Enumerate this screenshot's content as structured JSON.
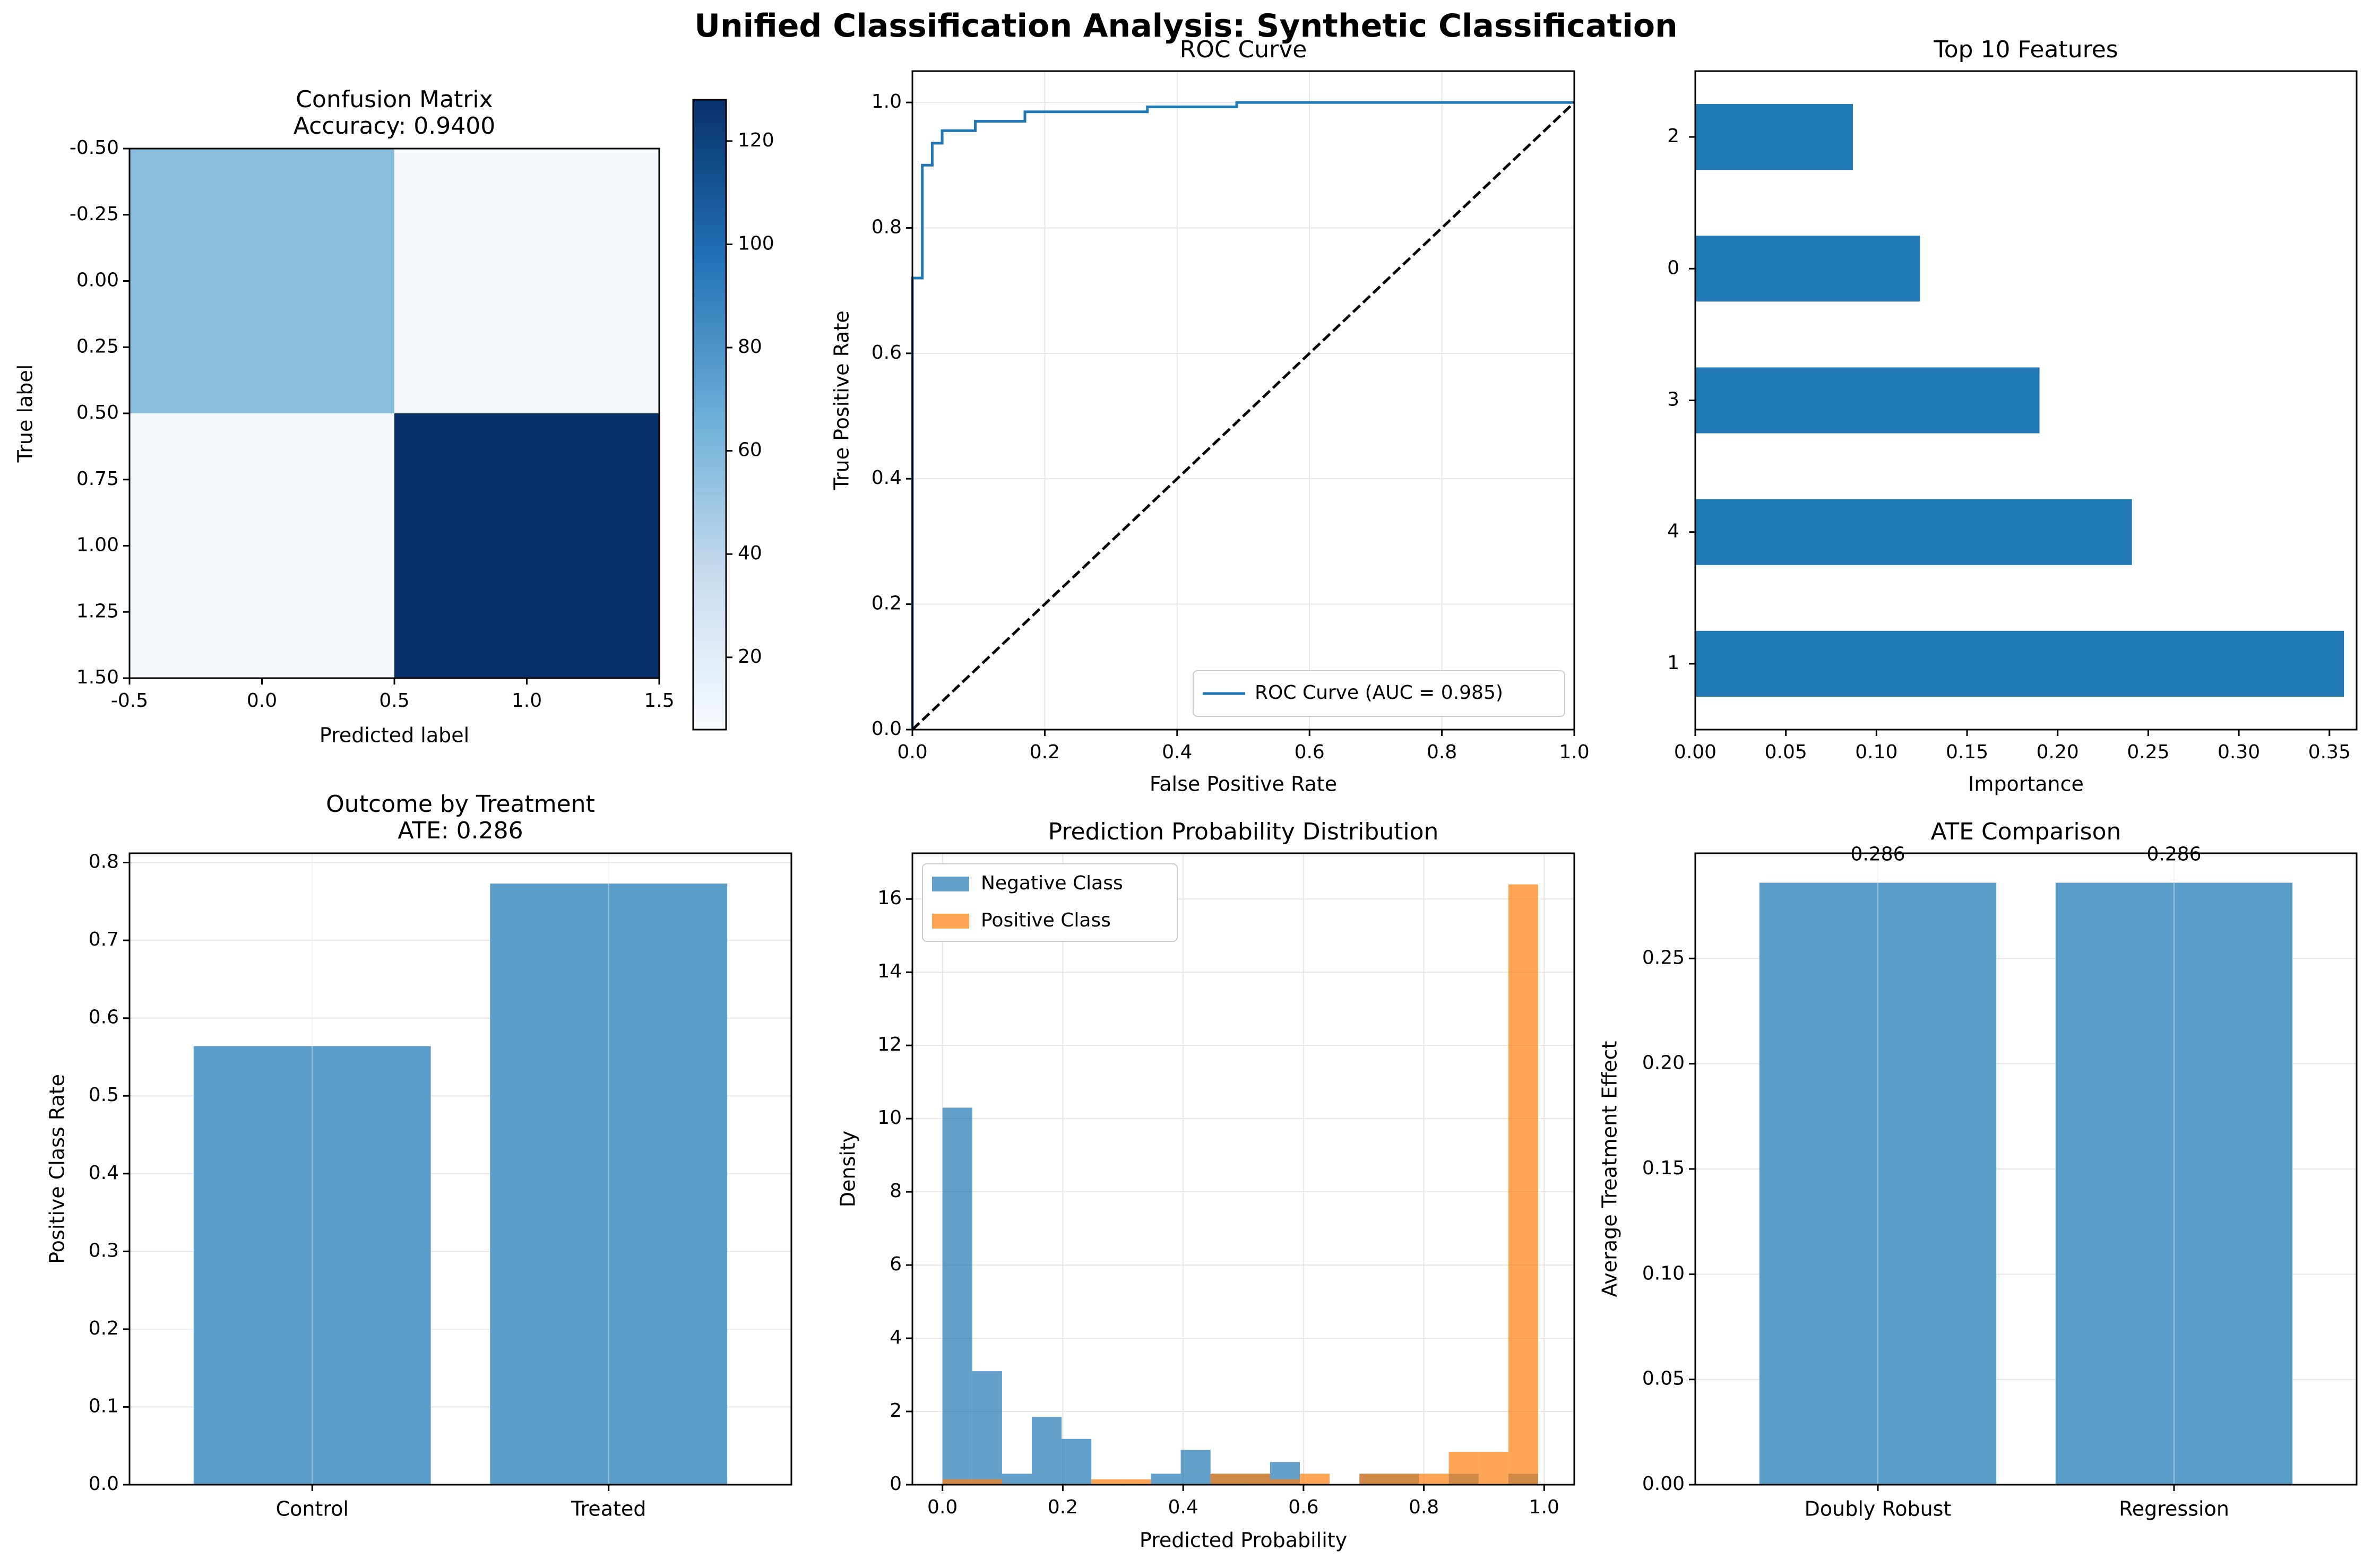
{
  "suptitle": "Unified Classification Analysis: Synthetic Classification",
  "colors": {
    "blue": "#1f77b4",
    "orange": "#ff7f0e",
    "bar_blue": "#5b9dc9",
    "diag": "#000000"
  },
  "chart_data": [
    {
      "id": "confusion",
      "type": "heatmap",
      "title": [
        "Confusion Matrix",
        "Accuracy: 0.9400"
      ],
      "xlabel": "Predicted label",
      "ylabel": "True label",
      "matrix": [
        [
          61,
          6
        ],
        [
          6,
          128
        ]
      ],
      "cell_colors": [
        [
          "#88bedc",
          "#f5f9fe"
        ],
        [
          "#f5f9fe",
          "#08306b"
        ]
      ],
      "xlim": [
        -0.5,
        1.5
      ],
      "ylim": [
        1.5,
        -0.5
      ],
      "xticks": [
        "-0.5",
        "0.0",
        "0.5",
        "1.0",
        "1.5"
      ],
      "yticks": [
        "-0.50",
        "-0.25",
        "0.00",
        "0.25",
        "0.50",
        "0.75",
        "1.00",
        "1.25",
        "1.50"
      ],
      "colorbar": {
        "range": [
          6,
          128
        ],
        "ticks": [
          "20",
          "40",
          "60",
          "80",
          "100",
          "120"
        ],
        "colormap": "Blues"
      }
    },
    {
      "id": "roc",
      "type": "line",
      "title": "ROC Curve",
      "xlabel": "False Positive Rate",
      "ylabel": "True Positive Rate",
      "xlim": [
        0,
        1
      ],
      "ylim": [
        0,
        1.05
      ],
      "xticks": [
        "0.0",
        "0.2",
        "0.4",
        "0.6",
        "0.8",
        "1.0"
      ],
      "yticks": [
        "0.0",
        "0.2",
        "0.4",
        "0.6",
        "0.8",
        "1.0"
      ],
      "grid": true,
      "legend": "lower-right",
      "series": [
        {
          "name": "ROC Curve (AUC = 0.985)",
          "x": [
            0,
            0,
            0.015,
            0.015,
            0.03,
            0.03,
            0.045,
            0.045,
            0.095,
            0.095,
            0.17,
            0.17,
            0.355,
            0.355,
            0.49,
            0.49,
            1.0
          ],
          "y": [
            0,
            0.72,
            0.72,
            0.9,
            0.9,
            0.935,
            0.935,
            0.955,
            0.955,
            0.97,
            0.97,
            0.985,
            0.985,
            0.993,
            0.993,
            1.0,
            1.0
          ]
        },
        {
          "name": "",
          "x": [
            0,
            1
          ],
          "y": [
            0,
            1
          ],
          "dashed": true
        }
      ]
    },
    {
      "id": "features",
      "type": "bar",
      "orientation": "horizontal",
      "title": "Top 10 Features",
      "xlabel": "Importance",
      "categories": [
        "1",
        "4",
        "3",
        "0",
        "2"
      ],
      "values": [
        0.358,
        0.241,
        0.19,
        0.124,
        0.087
      ],
      "xlim": [
        0,
        0.365
      ],
      "xticks": [
        "0.00",
        "0.05",
        "0.10",
        "0.15",
        "0.20",
        "0.25",
        "0.30",
        "0.35"
      ]
    },
    {
      "id": "outcome",
      "type": "bar",
      "title": [
        "Outcome by Treatment",
        "ATE: 0.286"
      ],
      "ylabel": "Positive Class Rate",
      "categories": [
        "Control",
        "Treated"
      ],
      "values": [
        0.564,
        0.773
      ],
      "ylim": [
        0,
        0.812
      ],
      "yticks": [
        "0.0",
        "0.1",
        "0.2",
        "0.3",
        "0.4",
        "0.5",
        "0.6",
        "0.7",
        "0.8"
      ],
      "grid": true
    },
    {
      "id": "probdist",
      "type": "bar",
      "subtype": "histogram",
      "title": "Prediction Probability Distribution",
      "xlabel": "Predicted Probability",
      "ylabel": "Density",
      "xlim": [
        -0.05,
        1.05
      ],
      "ylim": [
        0,
        17.25
      ],
      "xticks": [
        "0.0",
        "0.2",
        "0.4",
        "0.6",
        "0.8",
        "1.0"
      ],
      "yticks": [
        "0",
        "2",
        "4",
        "6",
        "8",
        "10",
        "12",
        "14",
        "16"
      ],
      "grid": true,
      "legend": "top-left",
      "series": [
        {
          "name": "Negative Class",
          "bin_width": 0.0495,
          "bin_start": [
            0.0,
            0.0495,
            0.099,
            0.1485,
            0.198,
            0.2475,
            0.297,
            0.3465,
            0.396,
            0.4455,
            0.495,
            0.5445,
            0.594,
            0.6435,
            0.693,
            0.7425,
            0.792,
            0.8415,
            0.891,
            0.9405
          ],
          "density": [
            10.3,
            3.1,
            0.3,
            1.85,
            1.25,
            0,
            0,
            0.3,
            0.95,
            0.3,
            0.3,
            0.62,
            0,
            0,
            0.3,
            0.3,
            0,
            0.3,
            0,
            0.3
          ]
        },
        {
          "name": "Positive Class",
          "bin_width": 0.0495,
          "bin_start": [
            0.0,
            0.0495,
            0.099,
            0.1485,
            0.198,
            0.2475,
            0.297,
            0.3465,
            0.396,
            0.4455,
            0.495,
            0.5445,
            0.594,
            0.6435,
            0.693,
            0.7425,
            0.792,
            0.8415,
            0.891,
            0.9405
          ],
          "density": [
            0.15,
            0.15,
            0,
            0,
            0,
            0.15,
            0.15,
            0,
            0,
            0.3,
            0.3,
            0.15,
            0.3,
            0,
            0.3,
            0.3,
            0.3,
            0.9,
            0.9,
            16.4
          ]
        }
      ]
    },
    {
      "id": "ate",
      "type": "bar",
      "title": "ATE Comparison",
      "ylabel": "Average Treatment Effect",
      "categories": [
        "Doubly Robust",
        "Regression"
      ],
      "values": [
        0.286,
        0.286
      ],
      "data_labels": [
        "0.286",
        "0.286"
      ],
      "ylim": [
        0,
        0.3
      ],
      "yticks": [
        "0.00",
        "0.05",
        "0.10",
        "0.15",
        "0.20",
        "0.25"
      ],
      "grid": true
    }
  ]
}
